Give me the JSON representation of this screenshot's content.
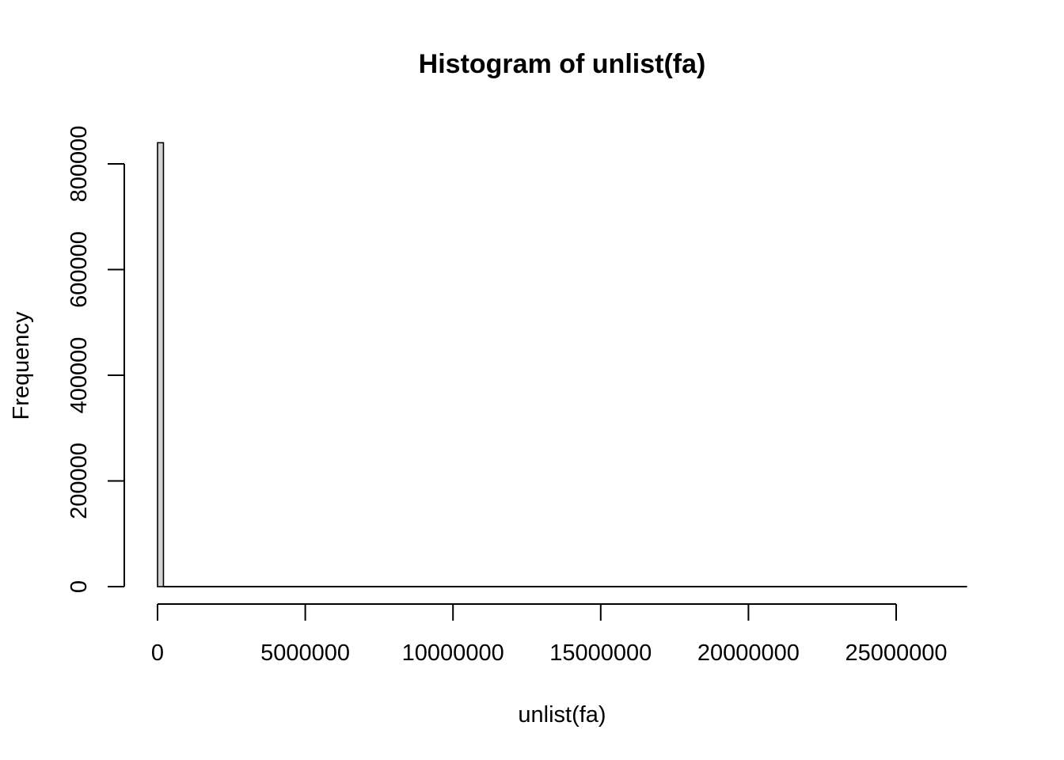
{
  "chart_data": {
    "type": "bar",
    "title": "Histogram of unlist(fa)",
    "xlabel": "unlist(fa)",
    "ylabel": "Frequency",
    "xlim": [
      0,
      27500000
    ],
    "ylim": [
      0,
      840000
    ],
    "x_ticks": [
      0,
      5000000,
      10000000,
      15000000,
      20000000,
      25000000
    ],
    "x_tick_labels": [
      "0",
      "5000000",
      "10000000",
      "15000000",
      "20000000",
      "25000000"
    ],
    "y_ticks": [
      0,
      200000,
      400000,
      600000,
      800000
    ],
    "y_tick_labels": [
      "0",
      "200000",
      "400000",
      "600000",
      "800000"
    ],
    "bin_width": 200000,
    "bins_start": 0,
    "bins_end": 27400000,
    "bars": [
      {
        "x0": 0,
        "x1": 200000,
        "count": 840000
      }
    ],
    "grid": false,
    "legend": "none"
  }
}
